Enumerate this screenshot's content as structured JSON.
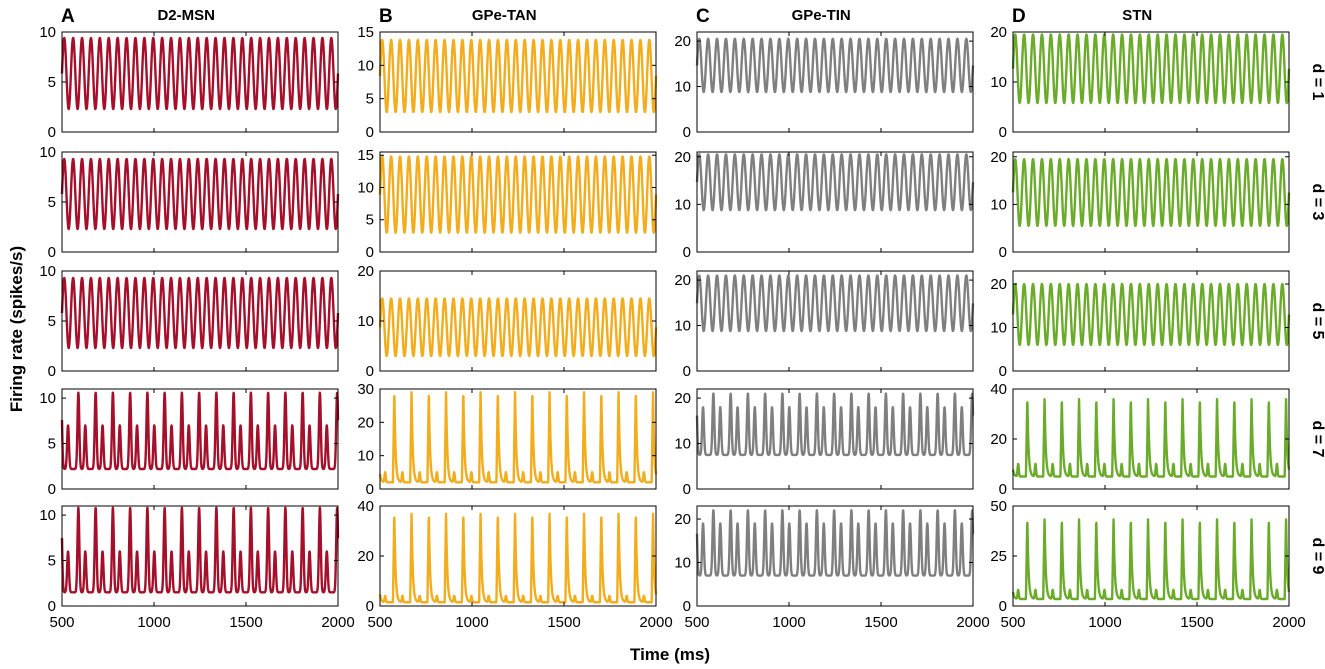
{
  "figure": {
    "ylabel": "Firing rate (spikes/s)",
    "xlabel": "Time (ms)",
    "columns": [
      {
        "letter": "A",
        "title": "D2-MSN",
        "color": "#a50f2a"
      },
      {
        "letter": "B",
        "title": "GPe-TAN",
        "color": "#f2ac1c"
      },
      {
        "letter": "C",
        "title": "GPe-TIN",
        "color": "#7f7f7f"
      },
      {
        "letter": "D",
        "title": "STN",
        "color": "#6aab2a"
      }
    ],
    "rows": [
      "d = 1",
      "d = 3",
      "d = 5",
      "d = 7",
      "d = 9"
    ]
  },
  "chart_data": {
    "type": "line",
    "x_unit": "Time (ms)",
    "y_unit": "Firing rate (spikes/s)",
    "xlim": [
      500,
      2000
    ],
    "xticks": [
      500,
      1000,
      1500,
      2000
    ],
    "panels": [
      {
        "column": "D2-MSN",
        "row": "d = 1",
        "ylim": [
          0,
          10
        ],
        "yticks": [
          0,
          5,
          10
        ],
        "pattern": "sinusoid",
        "cycles": 31,
        "min": 2.3,
        "max": 9.4
      },
      {
        "column": "D2-MSN",
        "row": "d = 3",
        "ylim": [
          0,
          10
        ],
        "yticks": [
          0,
          5,
          10
        ],
        "pattern": "sinusoid",
        "cycles": 31,
        "min": 2.3,
        "max": 9.3
      },
      {
        "column": "D2-MSN",
        "row": "d = 5",
        "ylim": [
          0,
          10
        ],
        "yticks": [
          0,
          5,
          10
        ],
        "pattern": "sinusoid",
        "cycles": 31,
        "min": 2.3,
        "max": 9.3
      },
      {
        "column": "D2-MSN",
        "row": "d = 7",
        "ylim": [
          0,
          11
        ],
        "yticks": [
          0,
          5,
          10
        ],
        "pattern": "double-peak",
        "cycles": 16,
        "min": 2.2,
        "max": 10.6,
        "mid": 7.0
      },
      {
        "column": "D2-MSN",
        "row": "d = 9",
        "ylim": [
          0,
          11
        ],
        "yticks": [
          0,
          5,
          10
        ],
        "pattern": "double-peak",
        "cycles": 16,
        "min": 1.5,
        "max": 10.8,
        "mid": 6.0
      },
      {
        "column": "GPe-TAN",
        "row": "d = 1",
        "ylim": [
          0,
          15
        ],
        "yticks": [
          0,
          5,
          10,
          15
        ],
        "pattern": "sinusoid",
        "cycles": 31,
        "min": 3.0,
        "max": 13.8
      },
      {
        "column": "GPe-TAN",
        "row": "d = 3",
        "ylim": [
          0,
          15.5
        ],
        "yticks": [
          0,
          5,
          10,
          15
        ],
        "pattern": "sinusoid",
        "cycles": 31,
        "min": 3.0,
        "max": 14.8
      },
      {
        "column": "GPe-TAN",
        "row": "d = 5",
        "ylim": [
          0,
          20
        ],
        "yticks": [
          0,
          10,
          20
        ],
        "pattern": "sinusoid",
        "cycles": 31,
        "min": 3.0,
        "max": 14.5
      },
      {
        "column": "GPe-TAN",
        "row": "d = 7",
        "ylim": [
          0,
          30
        ],
        "yticks": [
          0,
          10,
          20,
          30
        ],
        "pattern": "spike",
        "cycles": 16,
        "min": 2.0,
        "max": 29.5,
        "mid": 5.0
      },
      {
        "column": "GPe-TAN",
        "row": "d = 9",
        "ylim": [
          0,
          40
        ],
        "yticks": [
          0,
          20,
          40
        ],
        "pattern": "spike",
        "cycles": 16,
        "min": 1.5,
        "max": 37.5,
        "mid": 4.0
      },
      {
        "column": "GPe-TIN",
        "row": "d = 1",
        "ylim": [
          0,
          22
        ],
        "yticks": [
          0,
          10,
          20
        ],
        "pattern": "sinusoid",
        "cycles": 31,
        "min": 8.8,
        "max": 20.5
      },
      {
        "column": "GPe-TIN",
        "row": "d = 3",
        "ylim": [
          0,
          21
        ],
        "yticks": [
          0,
          10,
          20
        ],
        "pattern": "sinusoid",
        "cycles": 31,
        "min": 8.8,
        "max": 20.5
      },
      {
        "column": "GPe-TIN",
        "row": "d = 5",
        "ylim": [
          0,
          22
        ],
        "yticks": [
          0,
          10,
          20
        ],
        "pattern": "sinusoid",
        "cycles": 31,
        "min": 8.8,
        "max": 21.0
      },
      {
        "column": "GPe-TIN",
        "row": "d = 7",
        "ylim": [
          0,
          22
        ],
        "yticks": [
          0,
          10,
          20
        ],
        "pattern": "double-peak",
        "cycles": 16,
        "min": 7.5,
        "max": 21.0,
        "mid": 18.0
      },
      {
        "column": "GPe-TIN",
        "row": "d = 9",
        "ylim": [
          0,
          23
        ],
        "yticks": [
          0,
          10,
          20
        ],
        "pattern": "double-peak",
        "cycles": 16,
        "min": 7.0,
        "max": 22.0,
        "mid": 19.0
      },
      {
        "column": "STN",
        "row": "d = 1",
        "ylim": [
          0,
          20
        ],
        "yticks": [
          0,
          10,
          20
        ],
        "pattern": "sinusoid",
        "cycles": 31,
        "min": 5.8,
        "max": 19.5
      },
      {
        "column": "STN",
        "row": "d = 3",
        "ylim": [
          0,
          21
        ],
        "yticks": [
          0,
          10,
          20
        ],
        "pattern": "sinusoid",
        "cycles": 31,
        "min": 5.5,
        "max": 19.5
      },
      {
        "column": "STN",
        "row": "d = 5",
        "ylim": [
          0,
          23
        ],
        "yticks": [
          0,
          10,
          20
        ],
        "pattern": "sinusoid",
        "cycles": 31,
        "min": 6.0,
        "max": 20.0
      },
      {
        "column": "STN",
        "row": "d = 7",
        "ylim": [
          0,
          40
        ],
        "yticks": [
          0,
          20,
          40
        ],
        "pattern": "spike",
        "cycles": 16,
        "min": 5.0,
        "max": 36.5,
        "mid": 10.0
      },
      {
        "column": "STN",
        "row": "d = 9",
        "ylim": [
          0,
          50
        ],
        "yticks": [
          0,
          25,
          50
        ],
        "pattern": "spike",
        "cycles": 16,
        "min": 3.5,
        "max": 44.0,
        "mid": 8.0
      }
    ]
  }
}
